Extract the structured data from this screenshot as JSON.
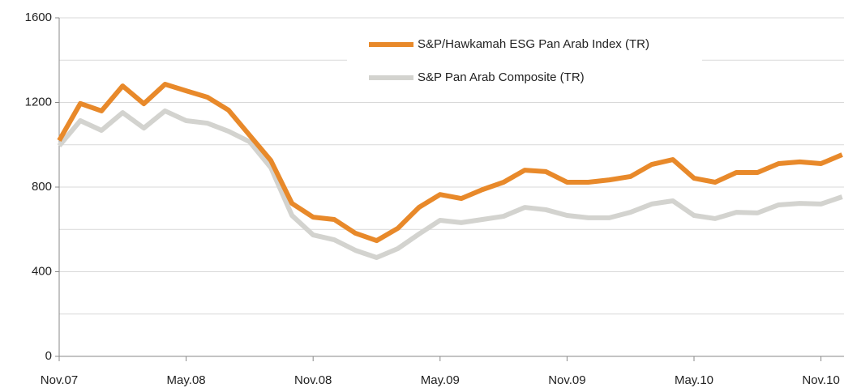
{
  "chart_data": {
    "type": "line",
    "categories": [
      "Nov.07",
      null,
      null,
      null,
      null,
      null,
      "May.08",
      null,
      null,
      null,
      null,
      null,
      "Nov.08",
      null,
      null,
      null,
      null,
      null,
      "May.09",
      null,
      null,
      null,
      null,
      null,
      "Nov.09",
      null,
      null,
      null,
      null,
      null,
      "May.10",
      null,
      null,
      null,
      null,
      null,
      "Nov.10",
      null
    ],
    "series": [
      {
        "name": "S&P/Hawkamah ESG Pan Arab Index (TR)",
        "color": "#e8892a",
        "values": [
          1020,
          1195,
          1160,
          1278,
          1194,
          1286,
          1255,
          1225,
          1164,
          1045,
          926,
          723,
          658,
          647,
          582,
          547,
          605,
          704,
          765,
          746,
          788,
          823,
          880,
          873,
          823,
          823,
          834,
          850,
          907,
          930,
          842,
          823,
          869,
          869,
          911,
          919,
          911,
          953
        ]
      },
      {
        "name": "S&P Pan Arab Composite (TR)",
        "color": "#d3d3cf",
        "values": [
          995,
          1114,
          1068,
          1152,
          1079,
          1160,
          1114,
          1102,
          1064,
          1014,
          892,
          666,
          574,
          551,
          501,
          467,
          509,
          578,
          643,
          632,
          647,
          662,
          704,
          693,
          666,
          655,
          655,
          681,
          720,
          735,
          666,
          651,
          681,
          678,
          716,
          723,
          720,
          754
        ]
      }
    ],
    "ylim": [
      0,
      1600
    ],
    "yticks": [
      0,
      400,
      800,
      1200,
      1600
    ],
    "minor_yticks": [
      200,
      600,
      1000,
      1400
    ],
    "grid": true
  }
}
